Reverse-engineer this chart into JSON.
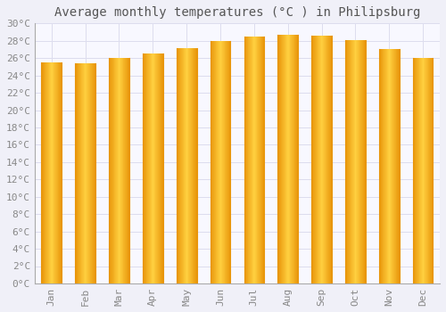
{
  "title": "Average monthly temperatures (°C ) in Philipsburg",
  "months": [
    "Jan",
    "Feb",
    "Mar",
    "Apr",
    "May",
    "Jun",
    "Jul",
    "Aug",
    "Sep",
    "Oct",
    "Nov",
    "Dec"
  ],
  "values": [
    25.5,
    25.4,
    26.0,
    26.5,
    27.1,
    28.0,
    28.5,
    28.7,
    28.6,
    28.1,
    27.0,
    26.0
  ],
  "bar_color_left": "#E8950A",
  "bar_color_center": "#FFD040",
  "bar_color_right": "#E8950A",
  "background_color": "#F0F0F8",
  "plot_background": "#F8F8FF",
  "grid_color": "#DDDDEE",
  "ylim": [
    0,
    30
  ],
  "ytick_step": 2,
  "title_fontsize": 10,
  "tick_fontsize": 8,
  "tick_color": "#888888",
  "font_family": "monospace",
  "bar_width": 0.6
}
